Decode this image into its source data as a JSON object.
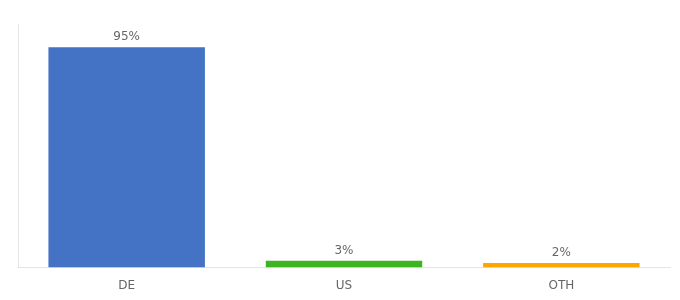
{
  "chart_data": {
    "type": "bar",
    "categories": [
      "DE",
      "US",
      "OTH"
    ],
    "values": [
      95,
      3,
      2
    ],
    "value_labels": [
      "95%",
      "3%",
      "2%"
    ],
    "data_labels": true,
    "colors": [
      "#4472C4",
      "#3CB520",
      "#FFA500"
    ],
    "ylim": [
      0,
      105
    ],
    "grid": false,
    "tick_labels": "x"
  }
}
